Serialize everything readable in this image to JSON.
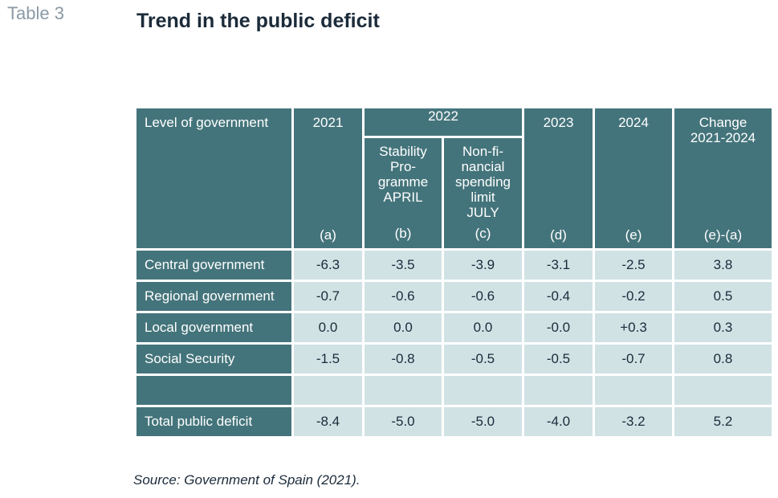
{
  "table_label": "Table 3",
  "title": "Trend in the public deficit",
  "header": {
    "level_of_government": "Level of government",
    "y2021": "2021",
    "y2021_code": "(a)",
    "y2022": "2022",
    "stability_line1": "Stability",
    "stability_line2": "Pro-",
    "stability_line3": "gramme",
    "stability_line4": "APRIL",
    "stability_code": "(b)",
    "nonfin_line1": "Non-fi-",
    "nonfin_line2": "nancial",
    "nonfin_line3": "spending",
    "nonfin_line4": "limit",
    "nonfin_line5": "JULY",
    "nonfin_code": "(c)",
    "y2023": "2023",
    "y2023_code": "(d)",
    "y2024": "2024",
    "y2024_code": "(e)",
    "change_line1": "Change",
    "change_line2": "2021-2024",
    "change_code": "(e)-(a)"
  },
  "rows": [
    {
      "label": "Central government",
      "v2021": "-6.3",
      "v2022b": "-3.5",
      "v2022c": "-3.9",
      "v2023": "-3.1",
      "v2024": "-2.5",
      "change": "3.8"
    },
    {
      "label": "Regional government",
      "v2021": "-0.7",
      "v2022b": "-0.6",
      "v2022c": "-0.6",
      "v2023": "-0.4",
      "v2024": "-0.2",
      "change": "0.5"
    },
    {
      "label": "Local government",
      "v2021": "0.0",
      "v2022b": "0.0",
      "v2022c": "0.0",
      "v2023": "-0.0",
      "v2024": "+0.3",
      "change": "0.3"
    },
    {
      "label": "Social Security",
      "v2021": "-1.5",
      "v2022b": "-0.8",
      "v2022c": "-0.5",
      "v2023": "-0.5",
      "v2024": "-0.7",
      "change": "0.8"
    },
    {
      "label": "",
      "v2021": "",
      "v2022b": "",
      "v2022c": "",
      "v2023": "",
      "v2024": "",
      "change": ""
    },
    {
      "label": "Total public deficit",
      "v2021": "-8.4",
      "v2022b": "-5.0",
      "v2022c": "-5.0",
      "v2023": "-4.0",
      "v2024": "-3.2",
      "change": "5.2"
    }
  ],
  "source": "Source: Government of Spain (2021).",
  "colors": {
    "header_bg": "#44747b",
    "cell_bg": "#d1e2e5",
    "title_text": "#1b2b3a",
    "label_gray": "#8a9aa6"
  }
}
